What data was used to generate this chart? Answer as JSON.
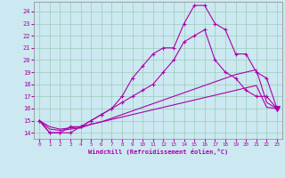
{
  "xlabel": "Windchill (Refroidissement éolien,°C)",
  "background_color": "#cce8f0",
  "grid_color": "#99ccbb",
  "line_color": "#aa00aa",
  "xlim": [
    -0.5,
    23.5
  ],
  "ylim": [
    13.5,
    24.8
  ],
  "yticks": [
    14,
    15,
    16,
    17,
    18,
    19,
    20,
    21,
    22,
    23,
    24
  ],
  "xticks": [
    0,
    1,
    2,
    3,
    4,
    5,
    6,
    7,
    8,
    9,
    10,
    11,
    12,
    13,
    14,
    15,
    16,
    17,
    18,
    19,
    20,
    21,
    22,
    23
  ],
  "line1_x": [
    0,
    1,
    2,
    3,
    4,
    5,
    6,
    7,
    8,
    9,
    10,
    11,
    12,
    13,
    14,
    15,
    16,
    17,
    18,
    19,
    20,
    21,
    22,
    23
  ],
  "line1_y": [
    15.0,
    14.0,
    14.0,
    14.0,
    14.5,
    15.0,
    15.5,
    16.0,
    17.0,
    18.5,
    19.5,
    20.5,
    21.0,
    21.0,
    23.0,
    24.5,
    24.5,
    23.0,
    22.5,
    20.5,
    20.5,
    19.0,
    18.5,
    16.0
  ],
  "line2_x": [
    0,
    1,
    2,
    3,
    4,
    5,
    6,
    7,
    8,
    9,
    10,
    11,
    12,
    13,
    14,
    15,
    16,
    17,
    18,
    19,
    20,
    21,
    22,
    23
  ],
  "line2_y": [
    15.0,
    14.0,
    14.0,
    14.5,
    14.5,
    15.0,
    15.5,
    16.0,
    16.5,
    17.0,
    17.5,
    18.0,
    19.0,
    20.0,
    21.5,
    22.0,
    22.5,
    20.0,
    19.0,
    18.5,
    17.5,
    17.0,
    17.0,
    16.0
  ],
  "line3_x": [
    0,
    1,
    2,
    3,
    4,
    5,
    6,
    7,
    8,
    9,
    10,
    11,
    12,
    13,
    14,
    15,
    16,
    17,
    18,
    19,
    20,
    21,
    22,
    23
  ],
  "line3_y": [
    15.0,
    14.3,
    14.2,
    14.3,
    14.4,
    14.7,
    14.9,
    15.2,
    15.5,
    15.8,
    16.1,
    16.4,
    16.7,
    17.0,
    17.3,
    17.6,
    17.9,
    18.2,
    18.5,
    18.8,
    19.0,
    19.2,
    16.5,
    16.0
  ],
  "line4_x": [
    0,
    1,
    2,
    3,
    4,
    5,
    6,
    7,
    8,
    9,
    10,
    11,
    12,
    13,
    14,
    15,
    16,
    17,
    18,
    19,
    20,
    21,
    22,
    23
  ],
  "line4_y": [
    15.0,
    14.5,
    14.3,
    14.4,
    14.5,
    14.7,
    14.9,
    15.1,
    15.3,
    15.5,
    15.7,
    15.9,
    16.1,
    16.3,
    16.5,
    16.7,
    16.9,
    17.1,
    17.3,
    17.5,
    17.7,
    17.9,
    16.1,
    16.0
  ],
  "marker1_x": [
    0,
    1,
    2,
    3,
    4,
    5,
    6,
    7,
    8,
    9,
    10,
    11,
    12,
    13,
    14,
    15,
    16,
    17,
    18,
    19,
    20,
    21,
    22,
    23
  ],
  "marker2_end_x": 23,
  "marker2_end_y": 16.0
}
